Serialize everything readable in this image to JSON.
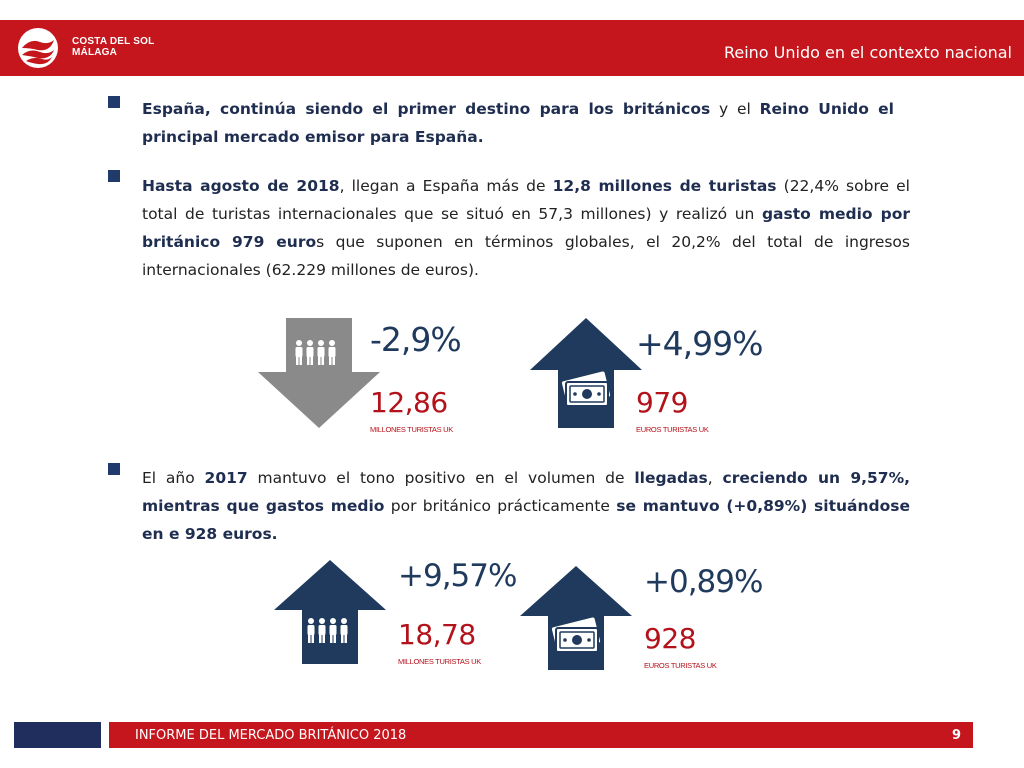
{
  "header": {
    "brand_line1": "COSTA DEL SOL",
    "brand_line2": "MÁLAGA",
    "title": "Reino Unido en el contexto nacional"
  },
  "para1": {
    "t1": "España",
    "t2": ", continúa siendo el primer destino para los británicos",
    "t3": " y el ",
    "t4": "Reino Unido el principal mercado emisor para España."
  },
  "para2": {
    "t1": "Hasta agosto de 2018",
    "t2": ", llegan a España más de ",
    "t3": "12,8 millones de turistas",
    "t4": " (22,4% sobre el total de turistas internacionales que se situó en 57,3 millones) y realizó un ",
    "t5": "gasto medio por británico 979 euro",
    "t6": "s que suponen en términos globales, el 20,2% del total de ingresos internacionales (62.229 millones de euros)."
  },
  "stats2018": {
    "tourists": {
      "change": "-2,9%",
      "value": "12,86",
      "label": "MILLONES TURISTAS UK",
      "direction": "down",
      "icon": "people-icon"
    },
    "spending": {
      "change": "+4,99%",
      "value": "979",
      "label": "EUROS  TURISTAS UK",
      "direction": "up",
      "icon": "money-icon"
    }
  },
  "para3": {
    "t1": "El año ",
    "t2": "2017",
    "t3": " mantuvo el tono positivo en el volumen ",
    "t4": "de ",
    "t5": "llegadas",
    "t6": ", ",
    "t7": "creciendo un 9,57%, mientras que gastos medio",
    "t8": " por británico prácticamente ",
    "t9": "se mantuvo (+0,89%) situándose en e 928 euros."
  },
  "stats2017": {
    "tourists": {
      "change": "+9,57%",
      "value": "18,78",
      "label": "MILLONES TURISTAS UK",
      "direction": "up",
      "icon": "people-icon"
    },
    "spending": {
      "change": "+0,89%",
      "value": "928",
      "label": "EUROS   TURISTAS UK",
      "direction": "up",
      "icon": "money-icon"
    }
  },
  "footer": {
    "title": "INFORME DEL MERCADO BRITÁNICO 2018",
    "page": "9"
  },
  "colors": {
    "brand_red": "#c4161c",
    "navy": "#1f3a5c",
    "arrow_grey": "#8a8a8a",
    "value_red": "#b3121a"
  }
}
